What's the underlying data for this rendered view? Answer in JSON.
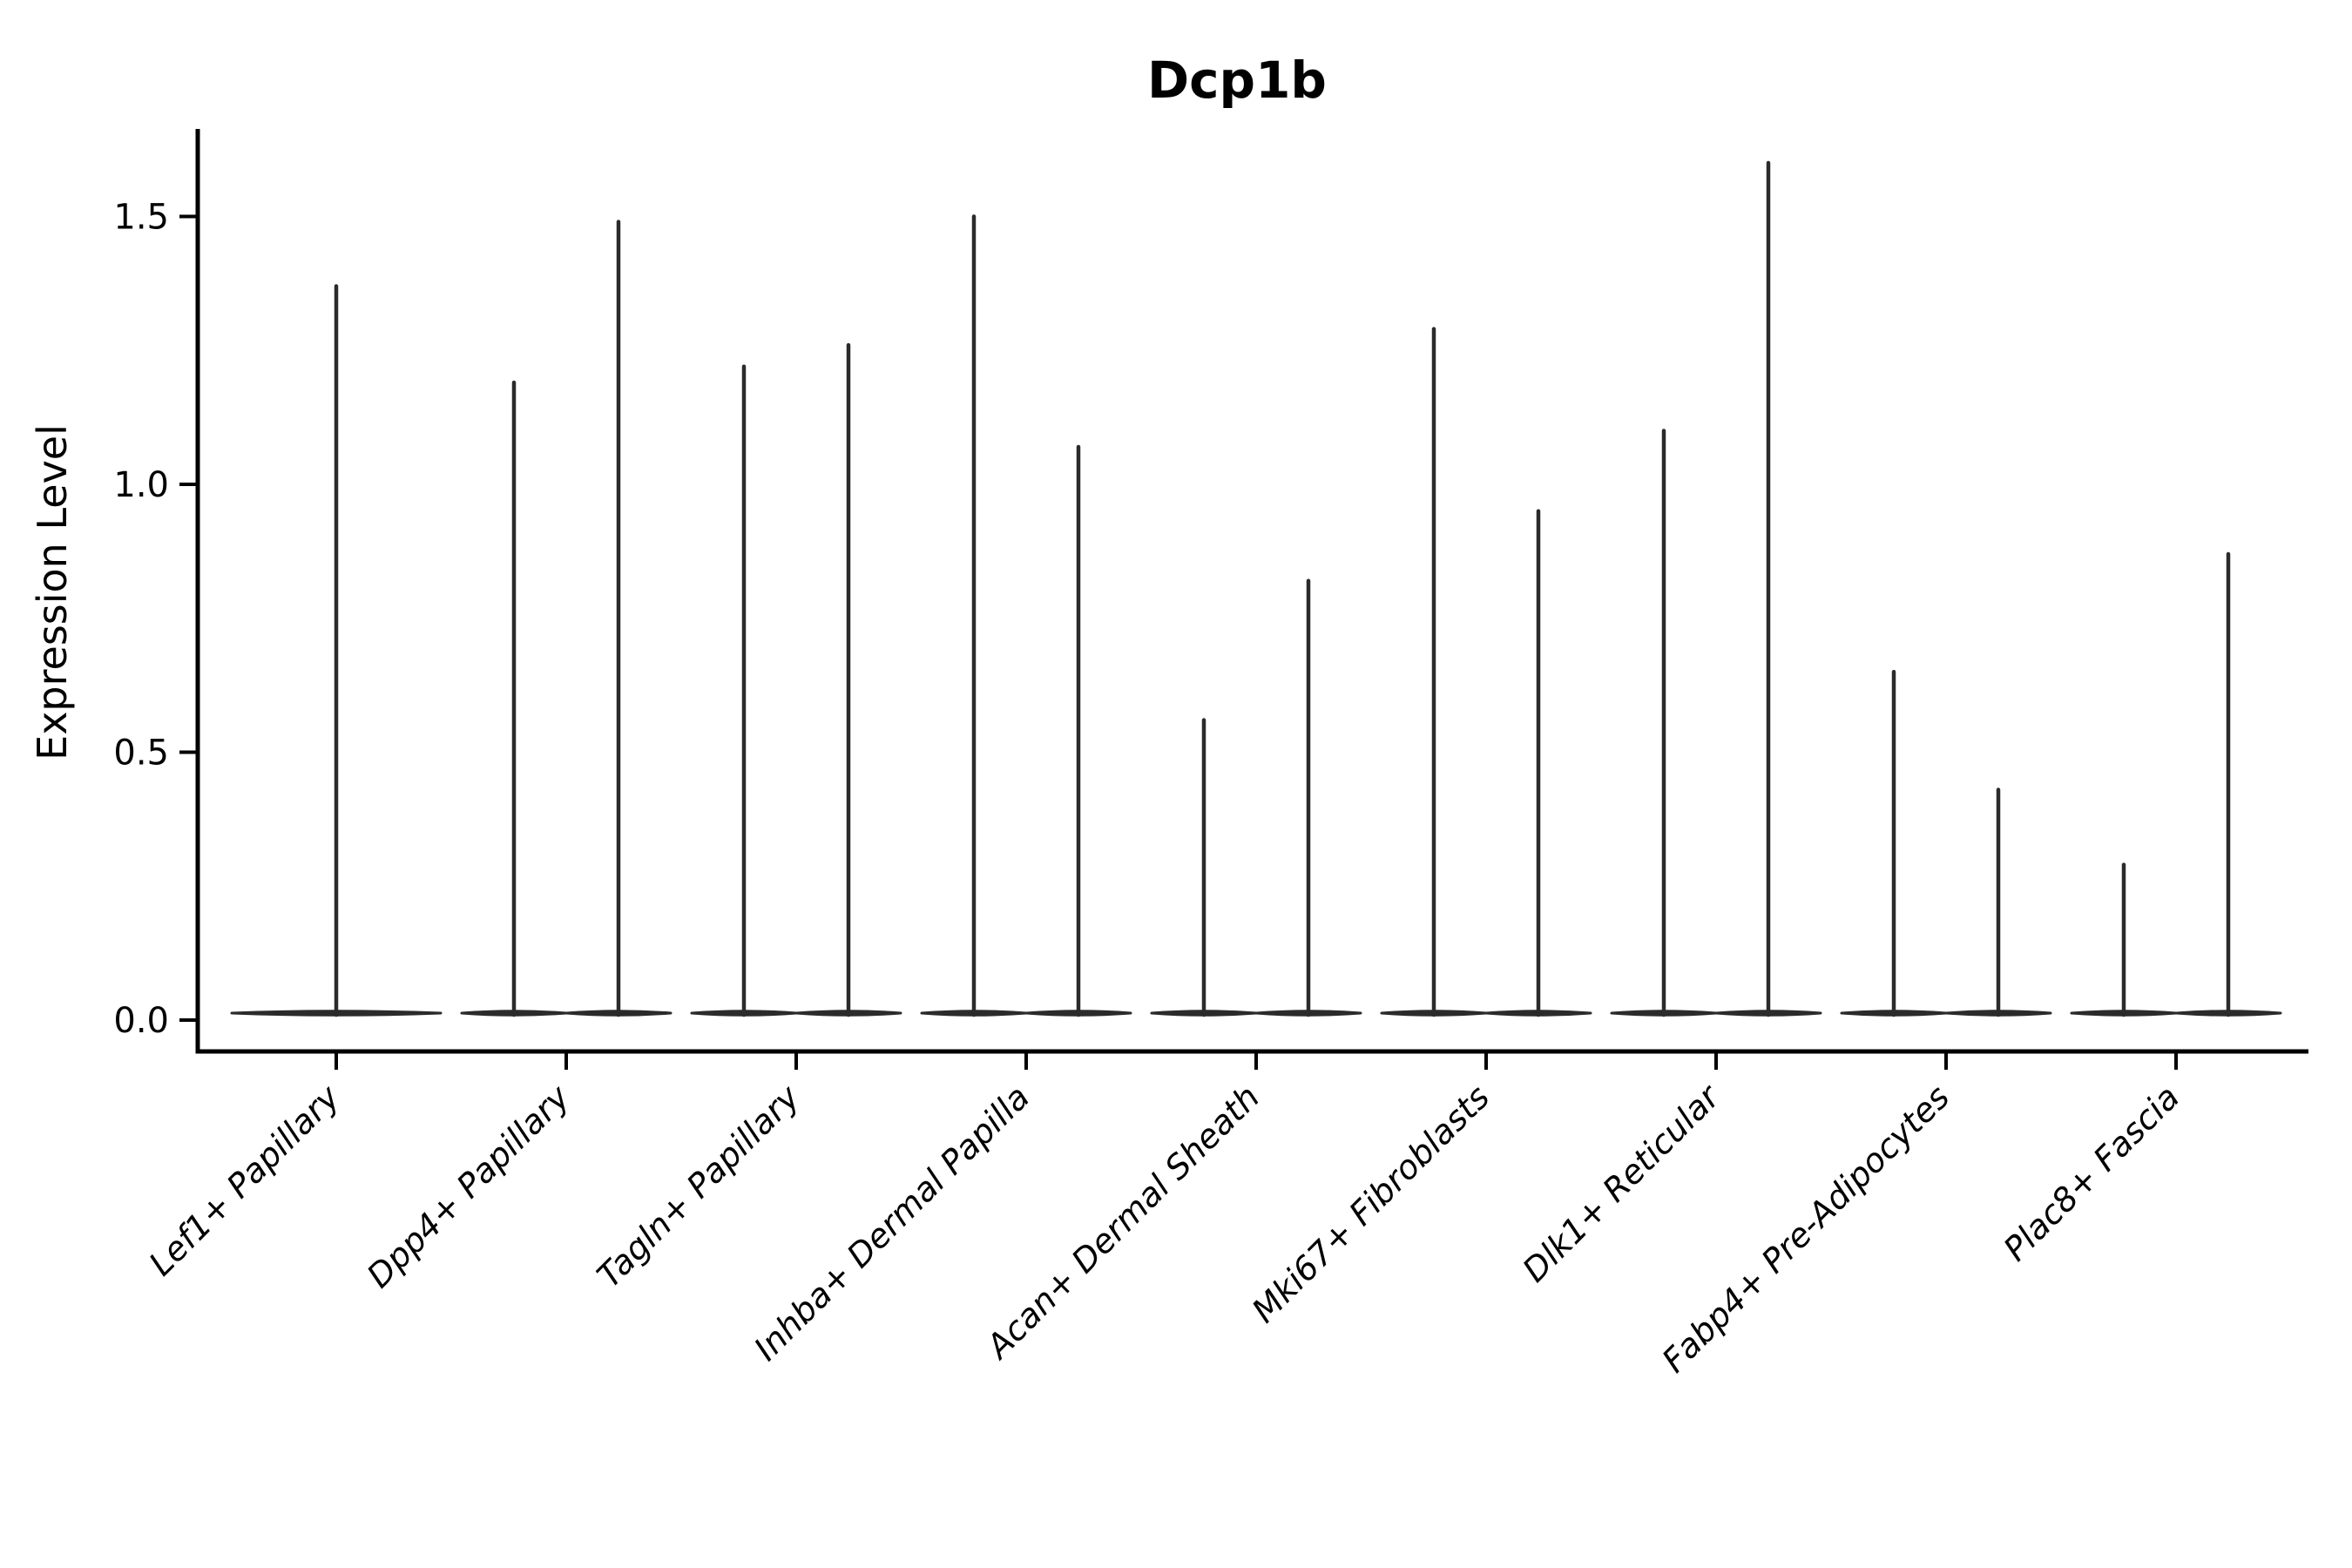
{
  "title": "Dcp1b",
  "y_axis": {
    "label": "Expression Level",
    "tick_labels": [
      "0.0",
      "0.5",
      "1.0",
      "1.5"
    ]
  },
  "colors": {
    "background": "#ffffff",
    "axis": "#000000",
    "text": "#000000",
    "violin": "#2b2b2b"
  },
  "chart_data": {
    "type": "violin",
    "title": "Dcp1b",
    "xlabel": "",
    "ylabel": "Expression Level",
    "ylim": [
      -0.06,
      1.66
    ],
    "yticks": [
      0.0,
      0.5,
      1.0,
      1.5
    ],
    "grid": false,
    "legend": "none",
    "shape_note": "Each violin is a near-flat density pancake at expression 0 with a single thin vertical spike reaching the maximum expression value; categories 2-9 contain two side-by-side half-width violins, category 1 a single full-width violin.",
    "categories": [
      {
        "label": "Lef1+ Papillary",
        "violins": [
          {
            "pos": "center",
            "max": 1.37
          }
        ]
      },
      {
        "label": "Dpp4+ Papillary",
        "violins": [
          {
            "pos": "left",
            "max": 1.19
          },
          {
            "pos": "right",
            "max": 1.49
          }
        ]
      },
      {
        "label": "Tagln+ Papillary",
        "violins": [
          {
            "pos": "left",
            "max": 1.22
          },
          {
            "pos": "right",
            "max": 1.26
          }
        ]
      },
      {
        "label": "Inhba+ Dermal Papilla",
        "violins": [
          {
            "pos": "left",
            "max": 1.5
          },
          {
            "pos": "right",
            "max": 1.07
          }
        ]
      },
      {
        "label": "Acan+ Dermal Sheath",
        "violins": [
          {
            "pos": "left",
            "max": 0.56
          },
          {
            "pos": "right",
            "max": 0.82
          }
        ]
      },
      {
        "label": "Mki67+ Fibroblasts",
        "violins": [
          {
            "pos": "left",
            "max": 1.29
          },
          {
            "pos": "right",
            "max": 0.95
          }
        ]
      },
      {
        "label": "Dlk1+ Reticular",
        "violins": [
          {
            "pos": "left",
            "max": 1.1
          },
          {
            "pos": "right",
            "max": 1.6
          }
        ]
      },
      {
        "label": "Fabp4+ Pre-Adipocytes",
        "violins": [
          {
            "pos": "left",
            "max": 0.65
          },
          {
            "pos": "right",
            "max": 0.43
          }
        ]
      },
      {
        "label": "Plac8+ Fascia",
        "violins": [
          {
            "pos": "left",
            "max": 0.29
          },
          {
            "pos": "right",
            "max": 0.87
          }
        ]
      }
    ]
  }
}
